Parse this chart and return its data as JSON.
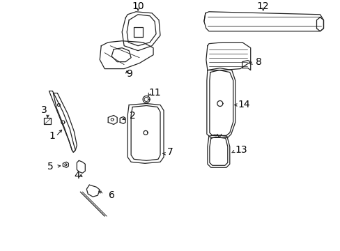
{
  "background_color": "#ffffff",
  "line_color": "#222222",
  "figsize": [
    4.89,
    3.6
  ],
  "dpi": 100
}
